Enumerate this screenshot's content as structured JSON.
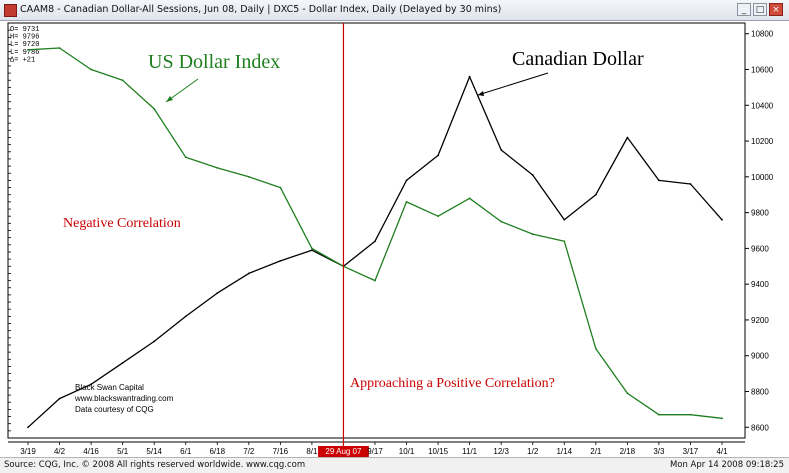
{
  "window": {
    "title": "CAAM8 - Canadian Dollar-All Sessions, Jun 08, Daily   |   DXC5 - Dollar Index, Daily (Delayed by 30 mins)",
    "minimize_label": "_",
    "maximize_label": "□",
    "close_label": "×"
  },
  "ohlc": {
    "lines": [
      "O=  9731",
      "H=  9796",
      "L=  9720",
      "L=  9786",
      "Δ=  +21"
    ]
  },
  "annotations": {
    "usd_label": "US Dollar Index",
    "cad_label": "Canadian Dollar",
    "negative": "Negative Correlation",
    "positive": "Approaching a Positive Correlation?",
    "source_line1": "Black Swan Capital",
    "source_line2": "www.blackswantrading.com",
    "source_line3": "Data courtesy of CQG"
  },
  "status": {
    "left": "Source: CQG, Inc. © 2008 All rights reserved worldwide. www.cqg.com",
    "right": "Mon Apr 14 2008 09:18:25"
  },
  "colors": {
    "cad": "#000000",
    "usd": "#1f7f1f",
    "marker": "#cc0000",
    "label_red": "#cc0000",
    "label_green": "#1f7f1f"
  },
  "chart_data": {
    "type": "line",
    "x": [
      "3/19",
      "4/2",
      "4/16",
      "5/1",
      "5/14",
      "6/1",
      "6/18",
      "7/2",
      "7/16",
      "8/1",
      "29 Aug 07",
      "9/17",
      "10/1",
      "10/15",
      "11/1",
      "12/3",
      "1/2",
      "1/14",
      "2/1",
      "2/18",
      "3/3",
      "3/17",
      "4/1"
    ],
    "highlighted_tick": "29 Aug 07",
    "yticks": [
      8600,
      8800,
      9000,
      9200,
      9400,
      9600,
      9800,
      10000,
      10200,
      10400,
      10600,
      10800
    ],
    "ylim": [
      8540,
      10860
    ],
    "series": [
      {
        "name": "Canadian Dollar",
        "values": [
          8600,
          8760,
          8840,
          8960,
          9080,
          9220,
          9350,
          9460,
          9530,
          9590,
          9500,
          9640,
          9980,
          10120,
          10560,
          10150,
          10010,
          9760,
          9900,
          10220,
          9980,
          9960,
          9760
        ]
      },
      {
        "name": "US Dollar Index",
        "values": [
          10710,
          10720,
          10600,
          10540,
          10380,
          10110,
          10050,
          10000,
          9940,
          9600,
          9500,
          9420,
          9860,
          9780,
          9880,
          9750,
          9680,
          9640,
          9040,
          8790,
          8670,
          8670,
          8650
        ]
      }
    ]
  }
}
